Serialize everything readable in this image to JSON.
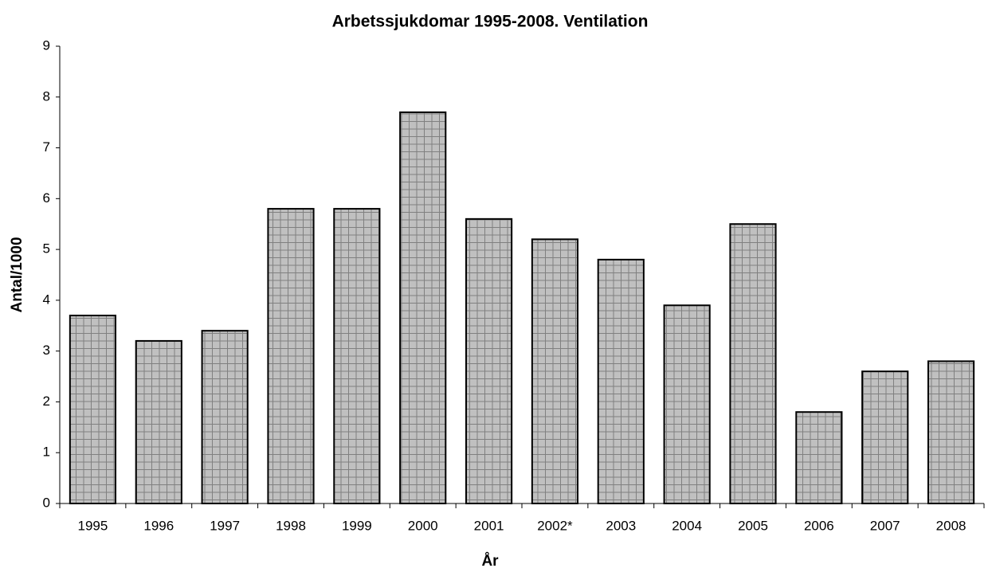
{
  "chart_data": {
    "type": "bar",
    "title": "Arbetssjukdomar 1995-2008. Ventilation",
    "xlabel": "År",
    "ylabel": "Antal/1000",
    "categories": [
      "1995",
      "1996",
      "1997",
      "1998",
      "1999",
      "2000",
      "2001",
      "2002*",
      "2003",
      "2004",
      "2005",
      "2006",
      "2007",
      "2008"
    ],
    "values": [
      3.7,
      3.2,
      3.4,
      5.8,
      5.8,
      7.7,
      5.6,
      5.2,
      4.8,
      3.9,
      5.5,
      1.8,
      2.6,
      2.8
    ],
    "color": "#c0c0c0",
    "ylim": [
      0,
      9
    ],
    "yticks": [
      0,
      1,
      2,
      3,
      4,
      5,
      6,
      7,
      8,
      9
    ],
    "grid": false
  }
}
